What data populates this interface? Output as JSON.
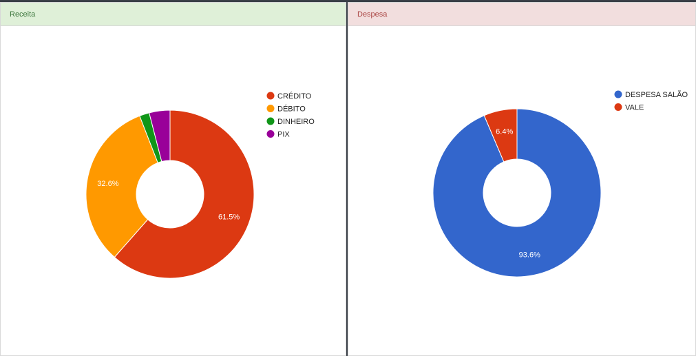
{
  "panels": {
    "receita": {
      "title": "Receita"
    },
    "despesa": {
      "title": "Despesa"
    }
  },
  "chart_data": [
    {
      "type": "pie",
      "donut": true,
      "categories": [
        "CRÉDITO",
        "DÉBITO",
        "DINHEIRO",
        "PIX"
      ],
      "values": [
        61.5,
        32.6,
        1.9,
        4.0
      ],
      "data_labels": [
        "61.5%",
        "32.6%",
        "",
        ""
      ],
      "colors": [
        "#dc3912",
        "#ff9900",
        "#109618",
        "#990099"
      ],
      "legend_position": "right"
    },
    {
      "type": "pie",
      "donut": true,
      "categories": [
        "DESPESA SALÃO",
        "VALE"
      ],
      "values": [
        93.6,
        6.4
      ],
      "data_labels": [
        "93.6%",
        "6.4%"
      ],
      "colors": [
        "#3366cc",
        "#dc3912"
      ],
      "legend_position": "right"
    }
  ]
}
